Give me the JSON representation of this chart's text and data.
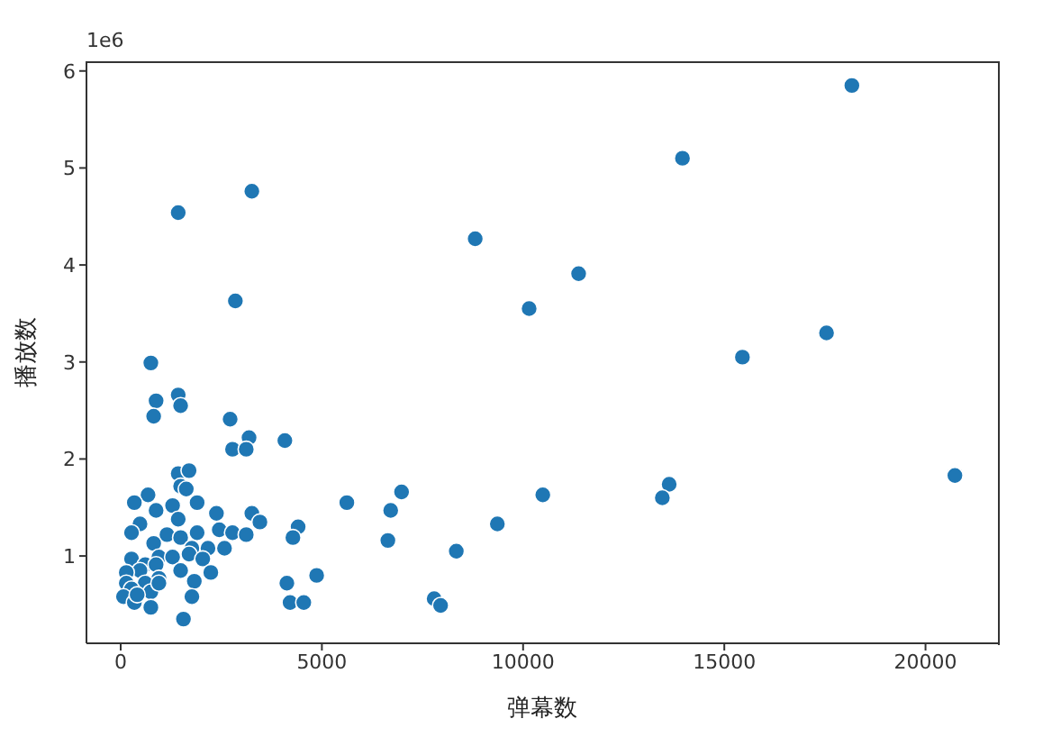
{
  "chart_data": {
    "type": "scatter",
    "xlabel": "弹幕数",
    "ylabel": "播放数",
    "annotations": [
      "1e6"
    ],
    "marker": "circle",
    "grid": false,
    "xlim": [
      -850,
      21800
    ],
    "xticks": [
      0,
      5000,
      10000,
      15000,
      20000
    ],
    "ylim": [
      0.1,
      6.1
    ],
    "yticks": [
      1,
      2,
      3,
      4,
      5,
      6
    ],
    "series": [
      {
        "color": "#1f77b4",
        "x": [
          18170,
          13960,
          3260,
          1430,
          8810,
          11380,
          2850,
          10150,
          17540,
          15450,
          750,
          880,
          1430,
          1490,
          820,
          2720,
          3190,
          4080,
          2780,
          3120,
          20730,
          1430,
          1700,
          1490,
          1630,
          13630,
          13460,
          10490,
          6980,
          5620,
          6710,
          680,
          340,
          1900,
          880,
          1290,
          2380,
          3260,
          3460,
          480,
          1430,
          9360,
          4410,
          270,
          1150,
          1490,
          1900,
          2450,
          2780,
          3120,
          4280,
          6640,
          820,
          1770,
          2170,
          2580,
          8340,
          270,
          950,
          1290,
          1700,
          2040,
          610,
          880,
          480,
          140,
          1490,
          2240,
          4870,
          950,
          1830,
          4130,
          140,
          610,
          270,
          750,
          1770,
          70,
          340,
          750,
          4210,
          4550,
          7790,
          7950,
          1560,
          410,
          950
        ],
        "values": [
          5.85,
          5.1,
          4.76,
          4.54,
          4.27,
          3.91,
          3.63,
          3.55,
          3.3,
          3.05,
          2.99,
          2.6,
          2.66,
          2.55,
          2.44,
          2.41,
          2.22,
          2.19,
          2.1,
          2.1,
          1.83,
          1.85,
          1.88,
          1.72,
          1.69,
          1.74,
          1.6,
          1.63,
          1.66,
          1.55,
          1.47,
          1.63,
          1.55,
          1.55,
          1.47,
          1.52,
          1.44,
          1.44,
          1.35,
          1.33,
          1.38,
          1.33,
          1.3,
          1.24,
          1.22,
          1.19,
          1.24,
          1.27,
          1.24,
          1.22,
          1.19,
          1.16,
          1.13,
          1.08,
          1.08,
          1.08,
          1.05,
          0.97,
          0.99,
          0.99,
          1.02,
          0.97,
          0.91,
          0.91,
          0.85,
          0.83,
          0.85,
          0.83,
          0.8,
          0.77,
          0.74,
          0.72,
          0.72,
          0.72,
          0.66,
          0.63,
          0.58,
          0.58,
          0.52,
          0.47,
          0.52,
          0.52,
          0.56,
          0.49,
          0.35,
          0.6,
          0.72
        ]
      }
    ]
  }
}
